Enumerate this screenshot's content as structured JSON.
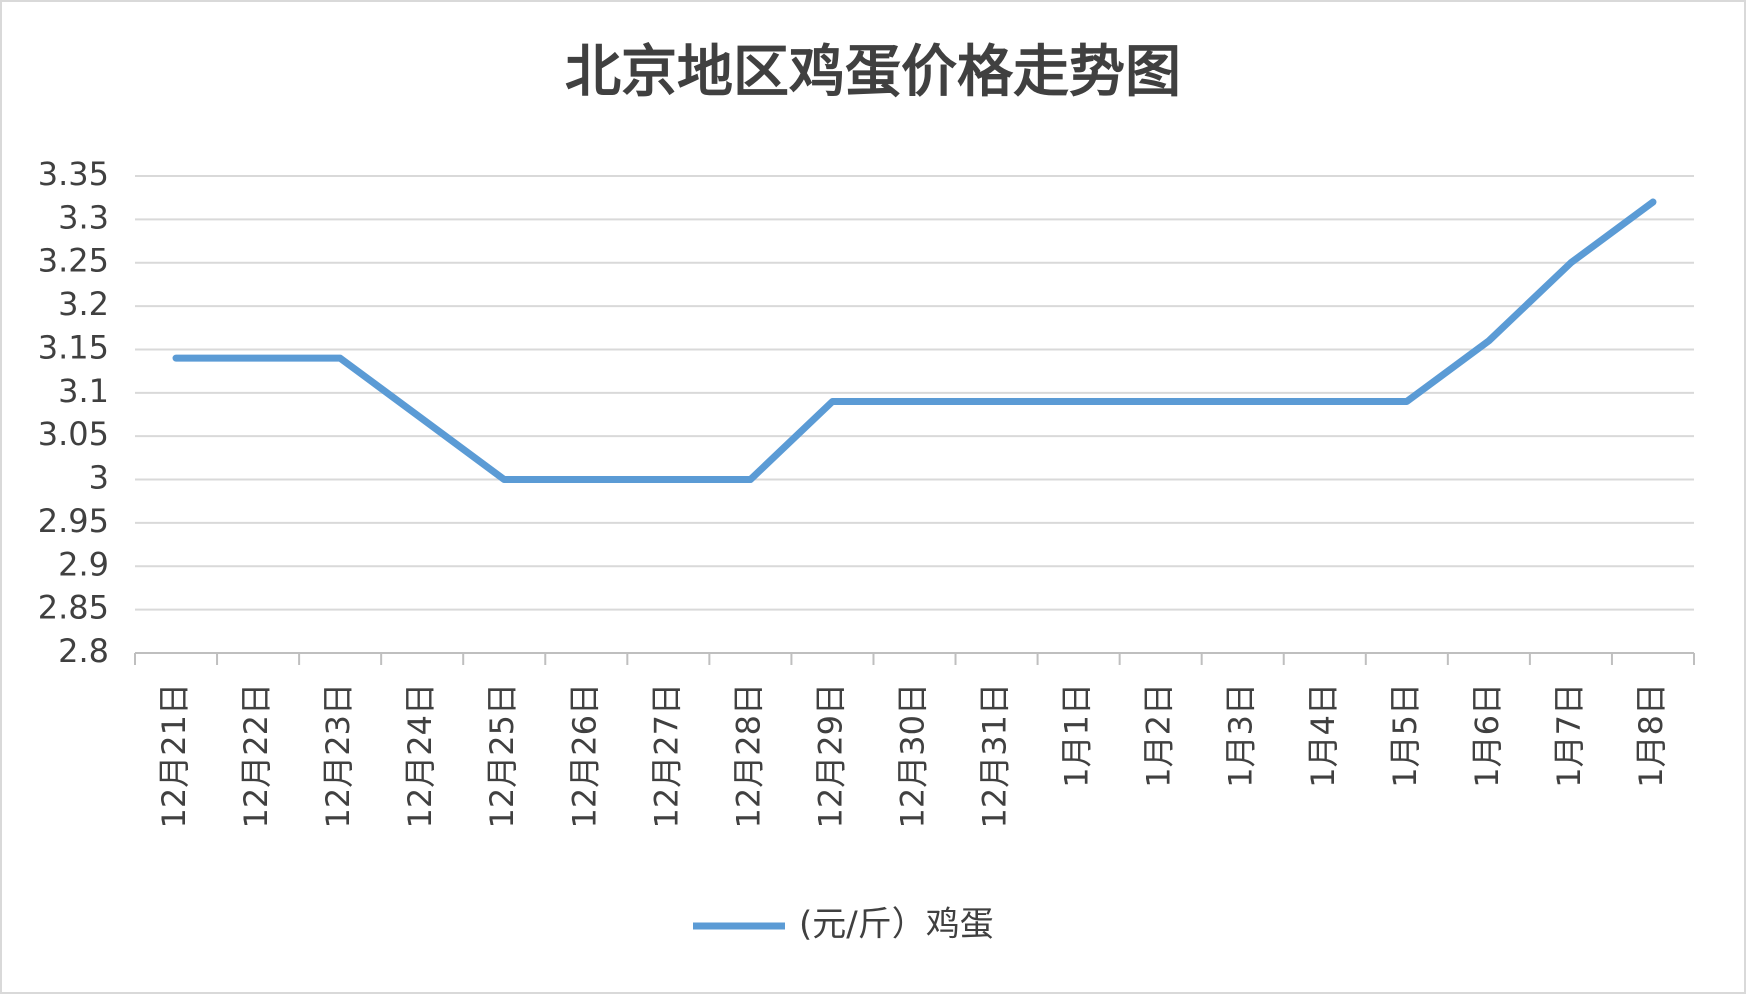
{
  "chart_data": {
    "type": "line",
    "title": "北京地区鸡蛋价格走势图",
    "categories": [
      "12月21日",
      "12月22日",
      "12月23日",
      "12月24日",
      "12月25日",
      "12月26日",
      "12月27日",
      "12月28日",
      "12月29日",
      "12月30日",
      "12月31日",
      "1月1日",
      "1月2日",
      "1月3日",
      "1月4日",
      "1月5日",
      "1月6日",
      "1月7日",
      "1月8日"
    ],
    "series": [
      {
        "name": "(元/斤）鸡蛋",
        "color": "#5b9bd5",
        "values": [
          3.14,
          3.14,
          3.14,
          3.07,
          3.0,
          3.0,
          3.0,
          3.0,
          3.09,
          3.09,
          3.09,
          3.09,
          3.09,
          3.09,
          3.09,
          3.09,
          3.16,
          3.25,
          3.32
        ]
      }
    ],
    "ylim": [
      2.8,
      3.35
    ],
    "yticks": [
      2.8,
      2.85,
      2.9,
      2.95,
      3,
      3.05,
      3.1,
      3.15,
      3.2,
      3.25,
      3.3,
      3.35
    ],
    "grid": true,
    "legend": "bottom"
  }
}
